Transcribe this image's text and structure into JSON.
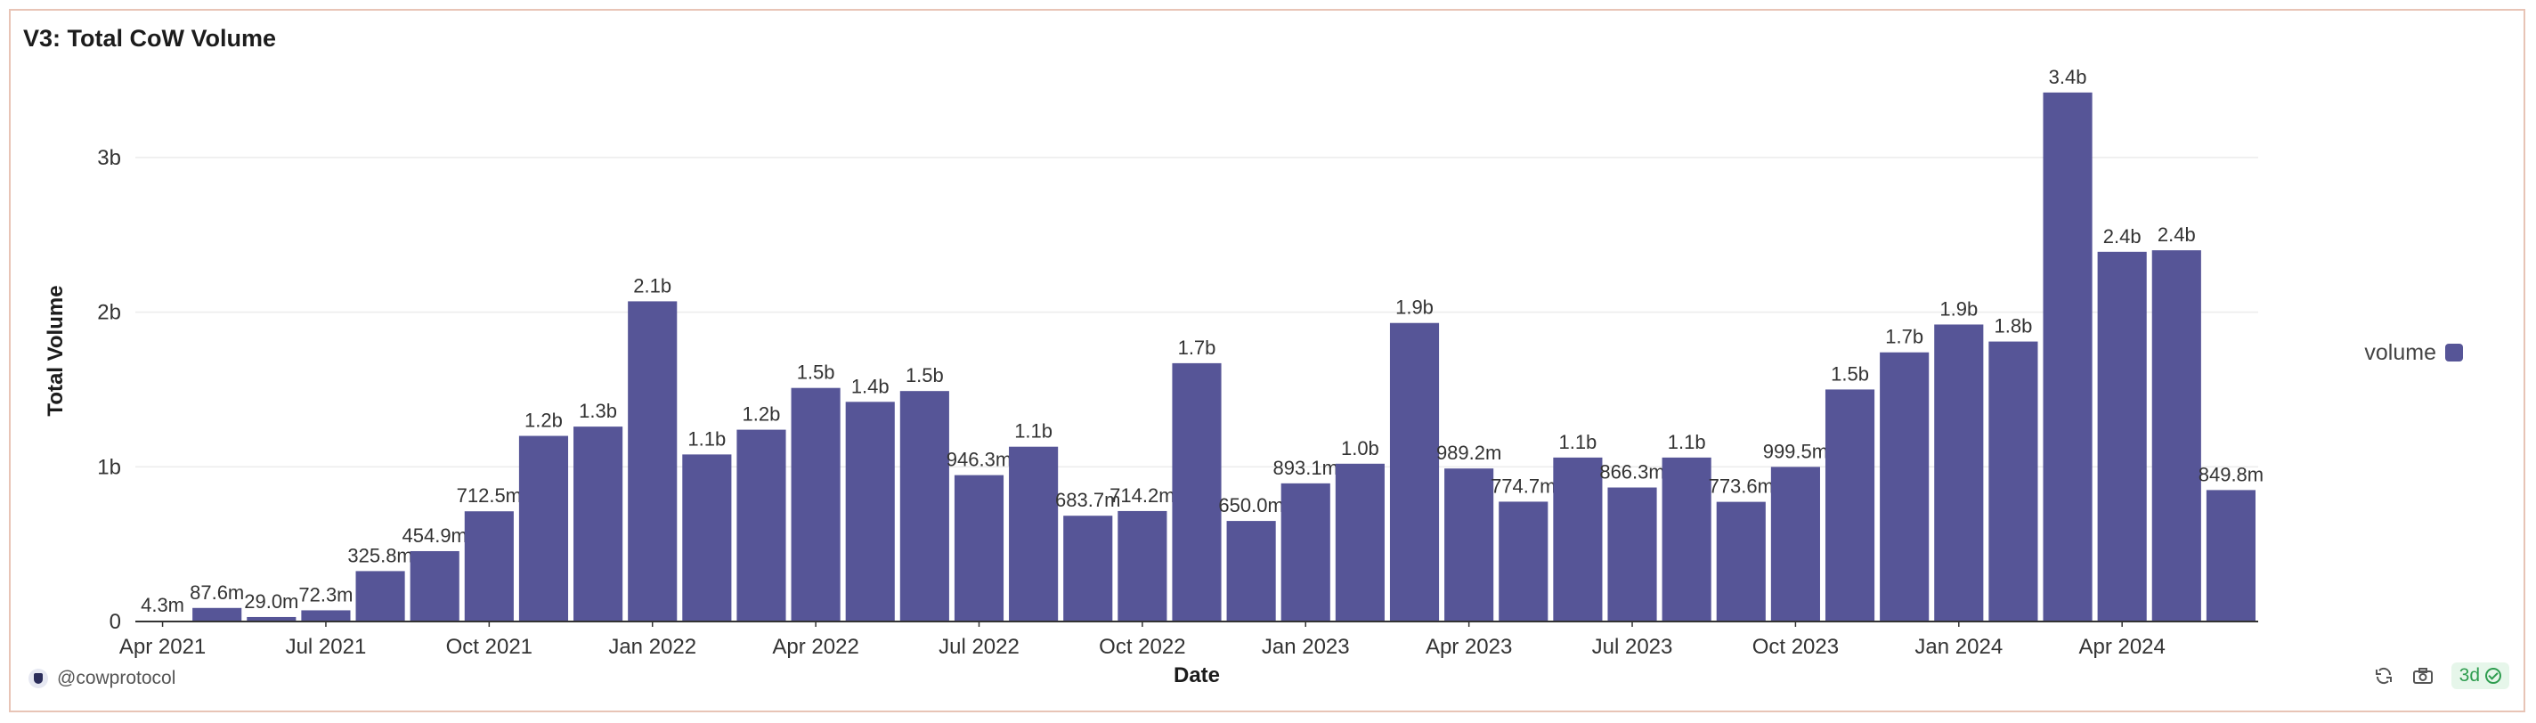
{
  "header": {
    "title": "V3: Total CoW Volume"
  },
  "footer": {
    "author": "@cowprotocol",
    "age_badge": "3d"
  },
  "icons": {
    "author": "cow-logo-icon",
    "refresh": "refresh-icon",
    "camera": "camera-icon",
    "check": "check-circle-icon"
  },
  "colors": {
    "bar": "#565597",
    "grid": "#ececec",
    "axis": "#333333",
    "text": "#333333",
    "border": "#e8c4b6"
  },
  "chart_data": {
    "type": "bar",
    "title": "V3: Total CoW Volume",
    "xlabel": "Date",
    "ylabel": "Total Volume",
    "ylim": [
      0,
      3500000000
    ],
    "y_ticks": [
      {
        "value": 0,
        "label": "0"
      },
      {
        "value": 1000000000,
        "label": "1b"
      },
      {
        "value": 2000000000,
        "label": "2b"
      },
      {
        "value": 3000000000,
        "label": "3b"
      }
    ],
    "x_ticks": [
      {
        "index": 0,
        "label": "Apr 2021"
      },
      {
        "index": 3,
        "label": "Jul 2021"
      },
      {
        "index": 6,
        "label": "Oct 2021"
      },
      {
        "index": 9,
        "label": "Jan 2022"
      },
      {
        "index": 12,
        "label": "Apr 2022"
      },
      {
        "index": 15,
        "label": "Jul 2022"
      },
      {
        "index": 18,
        "label": "Oct 2022"
      },
      {
        "index": 21,
        "label": "Jan 2023"
      },
      {
        "index": 24,
        "label": "Apr 2023"
      },
      {
        "index": 27,
        "label": "Jul 2023"
      },
      {
        "index": 30,
        "label": "Oct 2023"
      },
      {
        "index": 33,
        "label": "Jan 2024"
      },
      {
        "index": 36,
        "label": "Apr 2024"
      }
    ],
    "grid": true,
    "legend_position": "right",
    "series": [
      {
        "name": "volume",
        "color": "#565597",
        "values": [
          4300000,
          87600000,
          29000000,
          72300000,
          325800000,
          454900000,
          712500000,
          1200000000,
          1260000000,
          2070000000,
          1080000000,
          1240000000,
          1510000000,
          1420000000,
          1490000000,
          946300000,
          1130000000,
          683700000,
          714200000,
          1670000000,
          650000000,
          893100000,
          1020000000,
          1930000000,
          989200000,
          774700000,
          1060000000,
          866300000,
          1060000000,
          773600000,
          999500000,
          1500000000,
          1740000000,
          1920000000,
          1810000000,
          3420000000,
          2390000000,
          2400000000,
          849800000
        ],
        "labels": [
          "4.3m",
          "87.6m",
          "29.0m",
          "72.3m",
          "325.8m",
          "454.9m",
          "712.5m",
          "1.2b",
          "1.3b",
          "2.1b",
          "1.1b",
          "1.2b",
          "1.5b",
          "1.4b",
          "1.5b",
          "946.3m",
          "1.1b",
          "683.7m",
          "714.2m",
          "1.7b",
          "650.0m",
          "893.1m",
          "1.0b",
          "1.9b",
          "989.2m",
          "774.7m",
          "1.1b",
          "866.3m",
          "1.1b",
          "773.6m",
          "999.5m",
          "1.5b",
          "1.7b",
          "1.9b",
          "1.8b",
          "3.4b",
          "2.4b",
          "2.4b",
          "849.8m"
        ]
      }
    ]
  }
}
